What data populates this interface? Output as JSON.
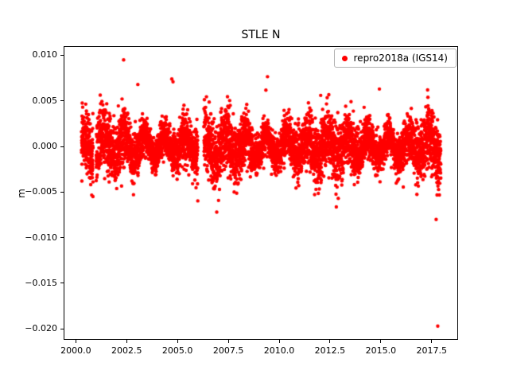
{
  "figure": {
    "background": "#ffffff"
  },
  "chart_data": {
    "type": "scatter",
    "title": "STLE N",
    "xlabel": "",
    "ylabel": "m",
    "xlim": [
      1999.4,
      2018.8
    ],
    "ylim": [
      -0.0212,
      0.011
    ],
    "xticks": [
      2000.0,
      2002.5,
      2005.0,
      2007.5,
      2010.0,
      2012.5,
      2015.0,
      2017.5
    ],
    "yticks": [
      0.01,
      0.005,
      0.0,
      -0.005,
      -0.01,
      -0.015,
      -0.02
    ],
    "grid": false,
    "legend": {
      "position": "upper right",
      "entries": [
        {
          "label": "repro2018a (IGS14)",
          "color": "#ff0000",
          "marker": "dot"
        }
      ]
    },
    "series": [
      {
        "name": "repro2018a (IGS14)",
        "color": "#ff0000",
        "marker_radius": 2.2,
        "synthesis": {
          "seed": 42,
          "n_points": 6100,
          "x_start": 2000.28,
          "x_end": 2017.95,
          "noise_sigma": 0.00135,
          "annual_amp": 0.0012,
          "annual_phase": 0.12,
          "sigma_mod_amp": 0.3,
          "sigma_mod_period": 5.5,
          "outlier_prob": 0.006,
          "outlier_scale": 1.9,
          "gaps": [
            [
              2000.85,
              2001.0
            ],
            [
              2006.0,
              2006.3
            ]
          ]
        },
        "outliers": [
          [
            2002.35,
            0.0095
          ],
          [
            2003.05,
            0.0068
          ],
          [
            2004.72,
            0.0074
          ],
          [
            2004.78,
            0.0071
          ],
          [
            2006.93,
            -0.0072
          ],
          [
            2014.93,
            0.0063
          ],
          [
            2017.3,
            0.0062
          ],
          [
            2017.72,
            -0.008
          ],
          [
            2017.8,
            -0.0197
          ]
        ]
      }
    ]
  }
}
